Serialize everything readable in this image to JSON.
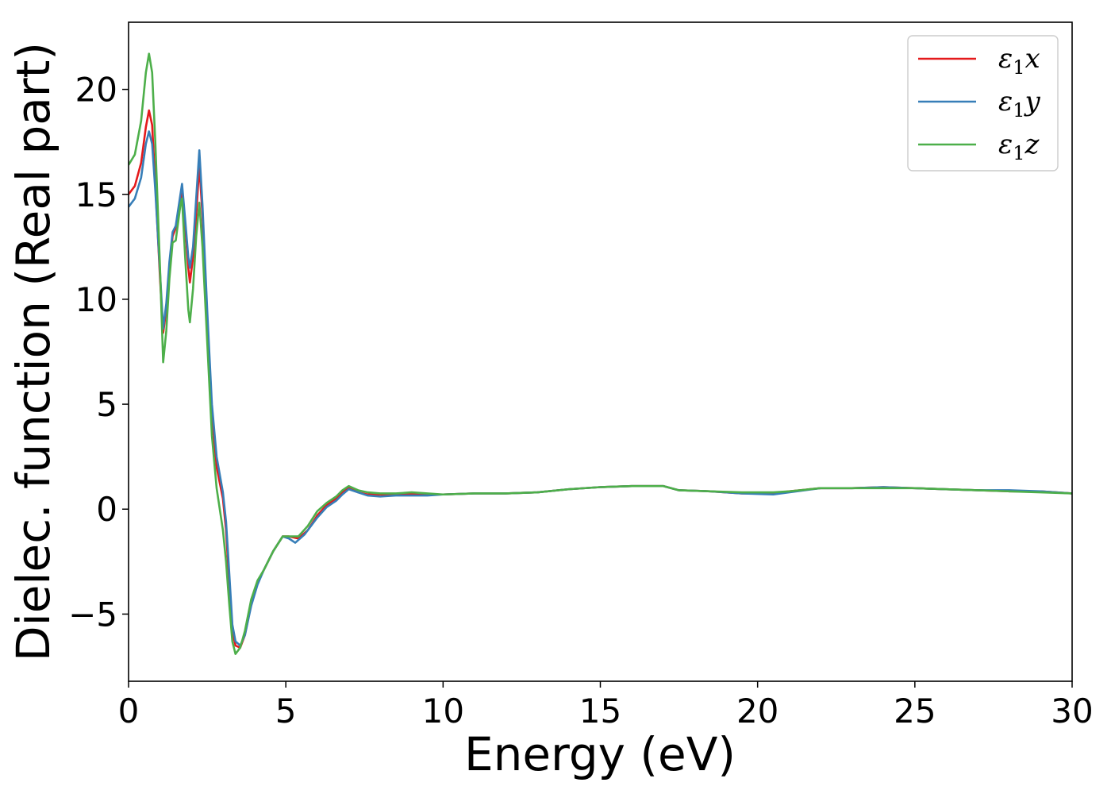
{
  "chart_data": {
    "type": "line",
    "title": "",
    "xlabel": "Energy (eV)",
    "ylabel": "Dielec. function (Real part)",
    "xlim": [
      0,
      30
    ],
    "ylim": [
      -8.2,
      23.2
    ],
    "xticks": [
      0,
      5,
      10,
      15,
      20,
      25,
      30
    ],
    "yticks": [
      -5,
      0,
      5,
      10,
      15,
      20
    ],
    "ytick_labels": [
      "−5",
      "0",
      "5",
      "10",
      "15",
      "20"
    ],
    "grid": false,
    "legend_position": "top-right",
    "series": [
      {
        "name": "ε₁x",
        "legend": {
          "base": "ε",
          "sub": "1",
          "suffix": "x"
        },
        "color": "#e41a1c",
        "points": [
          [
            0,
            15.0
          ],
          [
            0.2,
            15.4
          ],
          [
            0.4,
            16.5
          ],
          [
            0.55,
            18.2
          ],
          [
            0.65,
            19.0
          ],
          [
            0.75,
            18.3
          ],
          [
            0.85,
            15.5
          ],
          [
            1.0,
            11.0
          ],
          [
            1.1,
            8.4
          ],
          [
            1.2,
            9.5
          ],
          [
            1.3,
            11.5
          ],
          [
            1.4,
            13.0
          ],
          [
            1.5,
            13.4
          ],
          [
            1.65,
            14.6
          ],
          [
            1.7,
            15.3
          ],
          [
            1.8,
            13.5
          ],
          [
            1.9,
            11.5
          ],
          [
            1.95,
            10.8
          ],
          [
            2.05,
            12.0
          ],
          [
            2.15,
            14.0
          ],
          [
            2.25,
            16.4
          ],
          [
            2.35,
            14.0
          ],
          [
            2.5,
            9.0
          ],
          [
            2.65,
            4.5
          ],
          [
            2.8,
            2.0
          ],
          [
            3.0,
            0.5
          ],
          [
            3.1,
            -1.0
          ],
          [
            3.2,
            -3.5
          ],
          [
            3.3,
            -5.8
          ],
          [
            3.4,
            -6.5
          ],
          [
            3.55,
            -6.6
          ],
          [
            3.7,
            -6.0
          ],
          [
            3.9,
            -4.5
          ],
          [
            4.1,
            -3.5
          ],
          [
            4.3,
            -2.9
          ],
          [
            4.6,
            -2.0
          ],
          [
            4.9,
            -1.3
          ],
          [
            5.1,
            -1.3
          ],
          [
            5.4,
            -1.4
          ],
          [
            5.7,
            -1.0
          ],
          [
            6.0,
            -0.3
          ],
          [
            6.3,
            0.2
          ],
          [
            6.6,
            0.5
          ],
          [
            6.8,
            0.8
          ],
          [
            7.0,
            1.0
          ],
          [
            7.3,
            0.8
          ],
          [
            7.6,
            0.7
          ],
          [
            8.0,
            0.7
          ],
          [
            8.5,
            0.7
          ],
          [
            9.0,
            0.7
          ],
          [
            9.5,
            0.7
          ],
          [
            10,
            0.7
          ],
          [
            11,
            0.75
          ],
          [
            12,
            0.75
          ],
          [
            13,
            0.8
          ],
          [
            14,
            0.95
          ],
          [
            15,
            1.05
          ],
          [
            16,
            1.1
          ],
          [
            17,
            1.1
          ],
          [
            17.5,
            0.9
          ],
          [
            18.5,
            0.85
          ],
          [
            19.5,
            0.75
          ],
          [
            20.5,
            0.75
          ],
          [
            21,
            0.85
          ],
          [
            22,
            1.0
          ],
          [
            23,
            1.0
          ],
          [
            24,
            1.05
          ],
          [
            25,
            1.0
          ],
          [
            26,
            0.95
          ],
          [
            27,
            0.9
          ],
          [
            28,
            0.85
          ],
          [
            29,
            0.85
          ],
          [
            30,
            0.75
          ]
        ]
      },
      {
        "name": "ε₁y",
        "legend": {
          "base": "ε",
          "sub": "1",
          "suffix": "y"
        },
        "color": "#377eb8",
        "points": [
          [
            0,
            14.4
          ],
          [
            0.2,
            14.8
          ],
          [
            0.4,
            15.8
          ],
          [
            0.55,
            17.4
          ],
          [
            0.65,
            18.0
          ],
          [
            0.75,
            17.4
          ],
          [
            0.85,
            15.2
          ],
          [
            1.0,
            11.3
          ],
          [
            1.1,
            8.6
          ],
          [
            1.2,
            9.8
          ],
          [
            1.3,
            11.8
          ],
          [
            1.4,
            13.2
          ],
          [
            1.5,
            13.5
          ],
          [
            1.65,
            15.0
          ],
          [
            1.7,
            15.5
          ],
          [
            1.8,
            13.8
          ],
          [
            1.9,
            12.0
          ],
          [
            1.95,
            11.5
          ],
          [
            2.05,
            12.5
          ],
          [
            2.15,
            14.8
          ],
          [
            2.25,
            17.1
          ],
          [
            2.35,
            14.5
          ],
          [
            2.5,
            9.5
          ],
          [
            2.65,
            5.0
          ],
          [
            2.8,
            2.5
          ],
          [
            3.0,
            0.8
          ],
          [
            3.1,
            -0.6
          ],
          [
            3.2,
            -3.0
          ],
          [
            3.3,
            -5.5
          ],
          [
            3.4,
            -6.3
          ],
          [
            3.55,
            -6.5
          ],
          [
            3.7,
            -6.0
          ],
          [
            3.9,
            -4.6
          ],
          [
            4.1,
            -3.6
          ],
          [
            4.3,
            -2.9
          ],
          [
            4.6,
            -2.0
          ],
          [
            4.9,
            -1.3
          ],
          [
            5.1,
            -1.4
          ],
          [
            5.3,
            -1.6
          ],
          [
            5.6,
            -1.2
          ],
          [
            6.0,
            -0.4
          ],
          [
            6.3,
            0.1
          ],
          [
            6.6,
            0.4
          ],
          [
            6.8,
            0.7
          ],
          [
            7.0,
            0.95
          ],
          [
            7.3,
            0.8
          ],
          [
            7.6,
            0.65
          ],
          [
            8.0,
            0.6
          ],
          [
            8.5,
            0.65
          ],
          [
            9.0,
            0.65
          ],
          [
            9.5,
            0.65
          ],
          [
            10,
            0.7
          ],
          [
            11,
            0.75
          ],
          [
            12,
            0.75
          ],
          [
            13,
            0.8
          ],
          [
            14,
            0.95
          ],
          [
            15,
            1.05
          ],
          [
            16,
            1.1
          ],
          [
            17,
            1.1
          ],
          [
            17.5,
            0.9
          ],
          [
            18.5,
            0.85
          ],
          [
            19.5,
            0.75
          ],
          [
            20.5,
            0.7
          ],
          [
            21,
            0.8
          ],
          [
            22,
            1.0
          ],
          [
            23,
            1.0
          ],
          [
            24,
            1.05
          ],
          [
            25,
            1.0
          ],
          [
            26,
            0.95
          ],
          [
            27,
            0.9
          ],
          [
            28,
            0.9
          ],
          [
            29,
            0.85
          ],
          [
            30,
            0.75
          ]
        ]
      },
      {
        "name": "ε₁z",
        "legend": {
          "base": "ε",
          "sub": "1",
          "suffix": "z"
        },
        "color": "#4daf4a",
        "points": [
          [
            0,
            16.4
          ],
          [
            0.2,
            16.9
          ],
          [
            0.4,
            18.5
          ],
          [
            0.55,
            20.8
          ],
          [
            0.65,
            21.7
          ],
          [
            0.75,
            20.8
          ],
          [
            0.85,
            17.5
          ],
          [
            1.0,
            11.5
          ],
          [
            1.1,
            7.0
          ],
          [
            1.2,
            8.5
          ],
          [
            1.3,
            11.0
          ],
          [
            1.4,
            12.7
          ],
          [
            1.5,
            12.8
          ],
          [
            1.65,
            14.5
          ],
          [
            1.7,
            14.8
          ],
          [
            1.8,
            12.0
          ],
          [
            1.9,
            9.5
          ],
          [
            1.95,
            8.9
          ],
          [
            2.05,
            10.5
          ],
          [
            2.15,
            13.0
          ],
          [
            2.25,
            14.6
          ],
          [
            2.35,
            12.5
          ],
          [
            2.5,
            8.0
          ],
          [
            2.65,
            3.5
          ],
          [
            2.8,
            1.0
          ],
          [
            3.0,
            -1.0
          ],
          [
            3.1,
            -2.5
          ],
          [
            3.2,
            -4.5
          ],
          [
            3.3,
            -6.3
          ],
          [
            3.4,
            -6.9
          ],
          [
            3.55,
            -6.6
          ],
          [
            3.7,
            -5.8
          ],
          [
            3.9,
            -4.3
          ],
          [
            4.1,
            -3.4
          ],
          [
            4.3,
            -2.9
          ],
          [
            4.6,
            -2.0
          ],
          [
            4.9,
            -1.3
          ],
          [
            5.1,
            -1.3
          ],
          [
            5.4,
            -1.3
          ],
          [
            5.7,
            -0.8
          ],
          [
            6.0,
            -0.1
          ],
          [
            6.3,
            0.3
          ],
          [
            6.6,
            0.6
          ],
          [
            6.8,
            0.9
          ],
          [
            7.0,
            1.1
          ],
          [
            7.3,
            0.9
          ],
          [
            7.6,
            0.8
          ],
          [
            8.0,
            0.75
          ],
          [
            8.5,
            0.75
          ],
          [
            9.0,
            0.8
          ],
          [
            9.5,
            0.75
          ],
          [
            10,
            0.7
          ],
          [
            11,
            0.75
          ],
          [
            12,
            0.75
          ],
          [
            13,
            0.8
          ],
          [
            14,
            0.95
          ],
          [
            15,
            1.05
          ],
          [
            16,
            1.1
          ],
          [
            17,
            1.1
          ],
          [
            17.5,
            0.9
          ],
          [
            18.5,
            0.85
          ],
          [
            19.5,
            0.8
          ],
          [
            20.5,
            0.8
          ],
          [
            21,
            0.85
          ],
          [
            22,
            1.0
          ],
          [
            23,
            1.0
          ],
          [
            24,
            1.0
          ],
          [
            25,
            1.0
          ],
          [
            26,
            0.95
          ],
          [
            27,
            0.9
          ],
          [
            28,
            0.85
          ],
          [
            29,
            0.8
          ],
          [
            30,
            0.75
          ]
        ]
      }
    ]
  }
}
